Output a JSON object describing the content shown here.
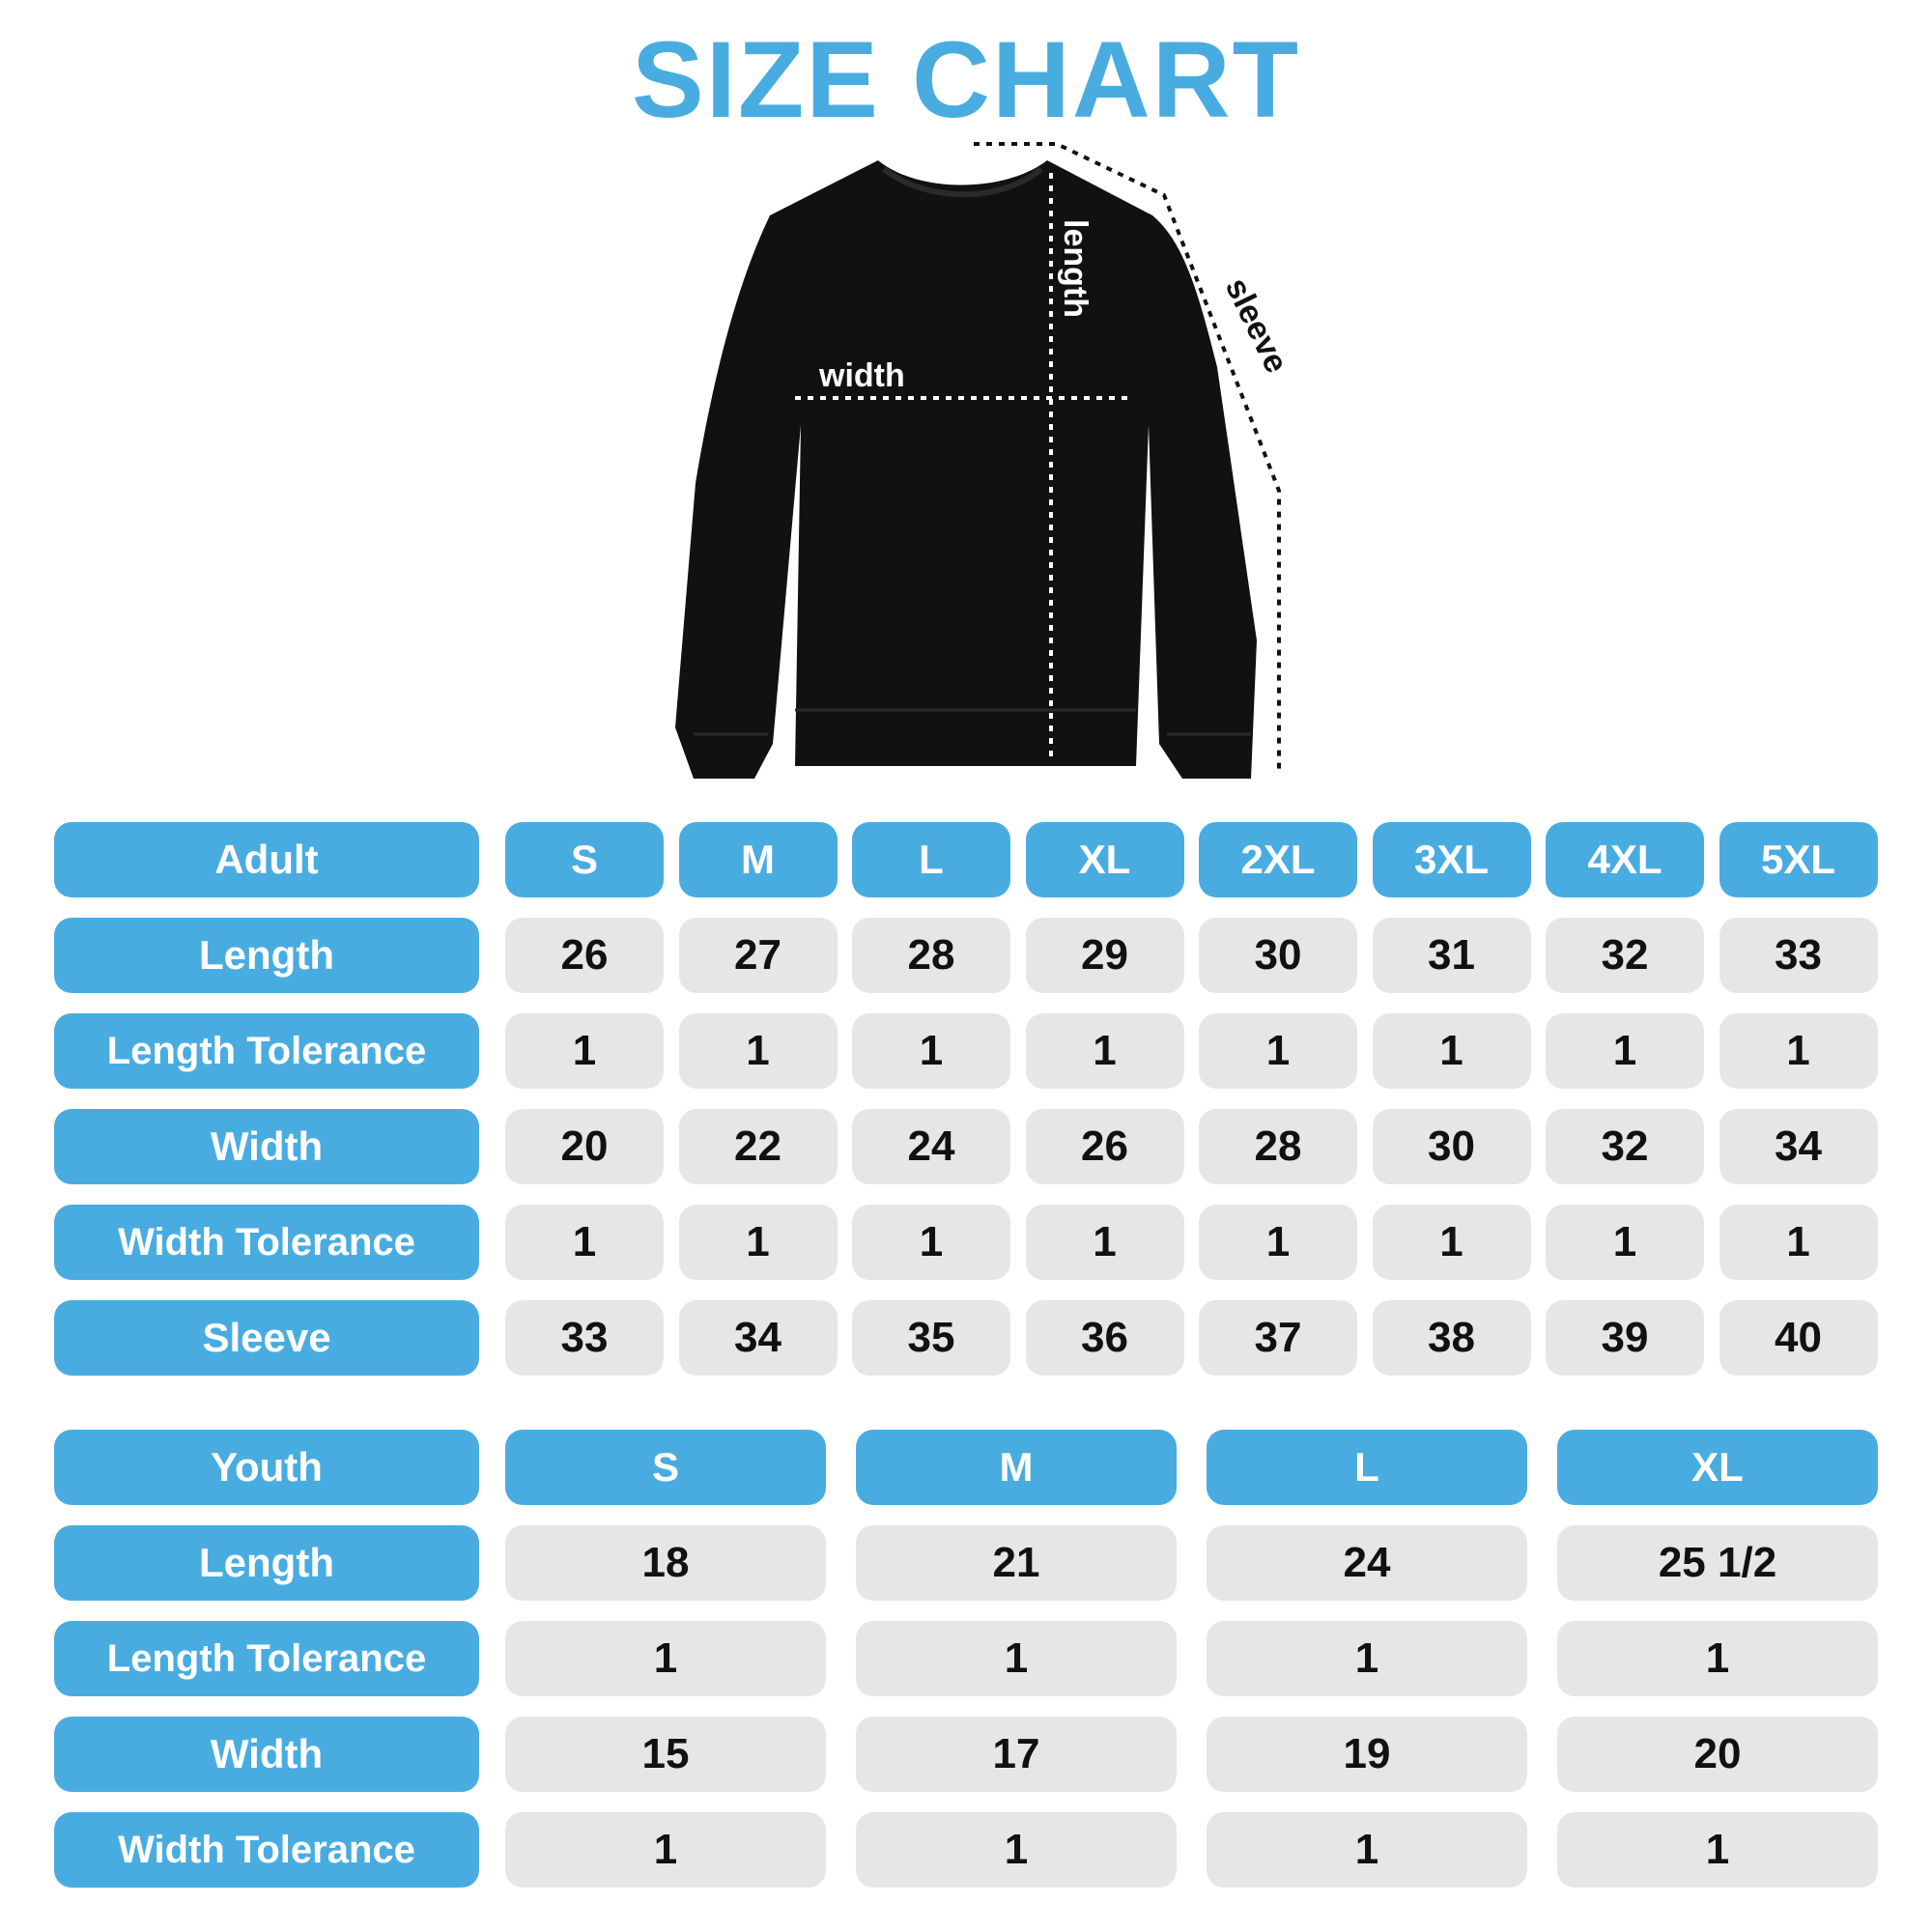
{
  "title": "SIZE CHART",
  "colors": {
    "accent": "#49ace1",
    "cell_bg": "#e5e6e8",
    "garment": "#111111"
  },
  "diagram": {
    "width_label": "width",
    "length_label": "length",
    "sleeve_label": "sleeve"
  },
  "adult": {
    "header": "Adult",
    "sizes": [
      "S",
      "M",
      "L",
      "XL",
      "2XL",
      "3XL",
      "4XL",
      "5XL"
    ],
    "rows": [
      {
        "label": "Length",
        "values": [
          "26",
          "27",
          "28",
          "29",
          "30",
          "31",
          "32",
          "33"
        ]
      },
      {
        "label": "Length Tolerance",
        "values": [
          "1",
          "1",
          "1",
          "1",
          "1",
          "1",
          "1",
          "1"
        ]
      },
      {
        "label": "Width",
        "values": [
          "20",
          "22",
          "24",
          "26",
          "28",
          "30",
          "32",
          "34"
        ]
      },
      {
        "label": "Width Tolerance",
        "values": [
          "1",
          "1",
          "1",
          "1",
          "1",
          "1",
          "1",
          "1"
        ]
      },
      {
        "label": "Sleeve",
        "values": [
          "33",
          "34",
          "35",
          "36",
          "37",
          "38",
          "39",
          "40"
        ]
      }
    ]
  },
  "youth": {
    "header": "Youth",
    "sizes": [
      "S",
      "M",
      "L",
      "XL"
    ],
    "rows": [
      {
        "label": "Length",
        "values": [
          "18",
          "21",
          "24",
          "25 1/2"
        ]
      },
      {
        "label": "Length Tolerance",
        "values": [
          "1",
          "1",
          "1",
          "1"
        ]
      },
      {
        "label": "Width",
        "values": [
          "15",
          "17",
          "19",
          "20"
        ]
      },
      {
        "label": "Width Tolerance",
        "values": [
          "1",
          "1",
          "1",
          "1"
        ]
      }
    ]
  }
}
